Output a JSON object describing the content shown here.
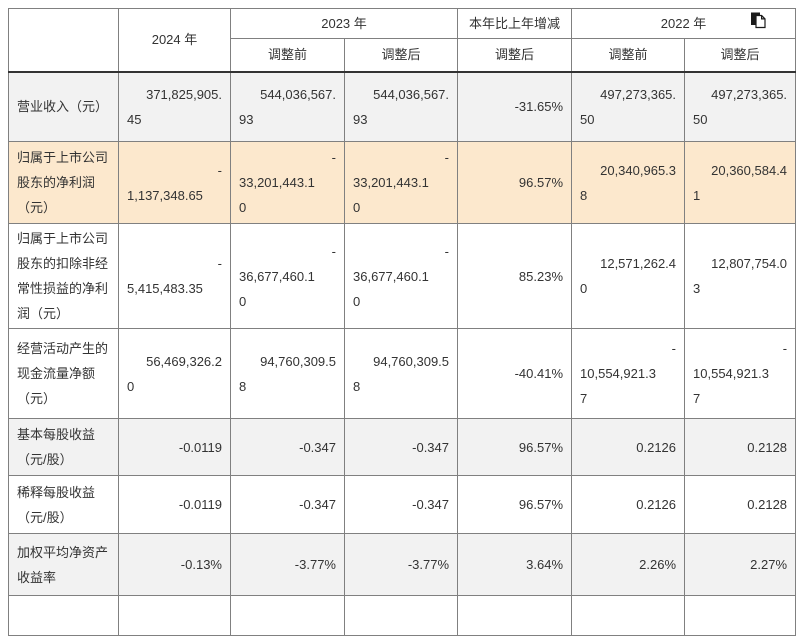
{
  "table": {
    "header": {
      "corner": "",
      "y2024": "2024 年",
      "y2023": "2023 年",
      "change": "本年比上年增减",
      "y2022": "2022 年"
    },
    "sub_headers": [
      "调整前",
      "调整后",
      "调整后",
      "调整前",
      "调整后"
    ],
    "icons": {
      "copy": "copy-icon"
    },
    "colors": {
      "highlight": "#fce8cd",
      "stripe": "#f2f2f2",
      "border": "#808080",
      "header_rule": "#333333",
      "text": "#333333"
    },
    "rows": [
      {
        "label": "营业收入（元）",
        "v2024": "371,825,905.45",
        "v2023_before": "544,036,567.93",
        "v2023_after": "544,036,567.93",
        "change": "-31.65%",
        "v2022_before": "497,273,365.50",
        "v2022_after": "497,273,365.50",
        "highlight": false,
        "shade": true
      },
      {
        "label": "归属于上市公司股东的净利润（元）",
        "v2024": "-1,137,348.65",
        "v2023_before": "-33,201,443.10",
        "v2023_after": "-33,201,443.10",
        "change": "96.57%",
        "v2022_before": "20,340,965.38",
        "v2022_after": "20,360,584.41",
        "highlight": true,
        "shade": false
      },
      {
        "label": "归属于上市公司股东的扣除非经常性损益的净利润（元）",
        "v2024": "-5,415,483.35",
        "v2023_before": "-36,677,460.10",
        "v2023_after": "-36,677,460.10",
        "change": "85.23%",
        "v2022_before": "12,571,262.40",
        "v2022_after": "12,807,754.03",
        "highlight": false,
        "shade": false
      },
      {
        "label": "经营活动产生的现金流量净额（元）",
        "v2024": "56,469,326.20",
        "v2023_before": "94,760,309.58",
        "v2023_after": "94,760,309.58",
        "change": "-40.41%",
        "v2022_before": "-10,554,921.37",
        "v2022_after": "-10,554,921.37",
        "highlight": false,
        "shade": false
      },
      {
        "label": "基本每股收益（元/股）",
        "v2024": "-0.0119",
        "v2023_before": "-0.347",
        "v2023_after": "-0.347",
        "change": "96.57%",
        "v2022_before": "0.2126",
        "v2022_after": "0.2128",
        "highlight": false,
        "shade": true
      },
      {
        "label": "稀释每股收益（元/股）",
        "v2024": "-0.0119",
        "v2023_before": "-0.347",
        "v2023_after": "-0.347",
        "change": "96.57%",
        "v2022_before": "0.2126",
        "v2022_after": "0.2128",
        "highlight": false,
        "shade": false
      },
      {
        "label": "加权平均净资产收益率",
        "v2024": "-0.13%",
        "v2023_before": "-3.77%",
        "v2023_after": "-3.77%",
        "change": "3.64%",
        "v2022_before": "2.26%",
        "v2022_after": "2.27%",
        "highlight": false,
        "shade": true
      }
    ]
  }
}
